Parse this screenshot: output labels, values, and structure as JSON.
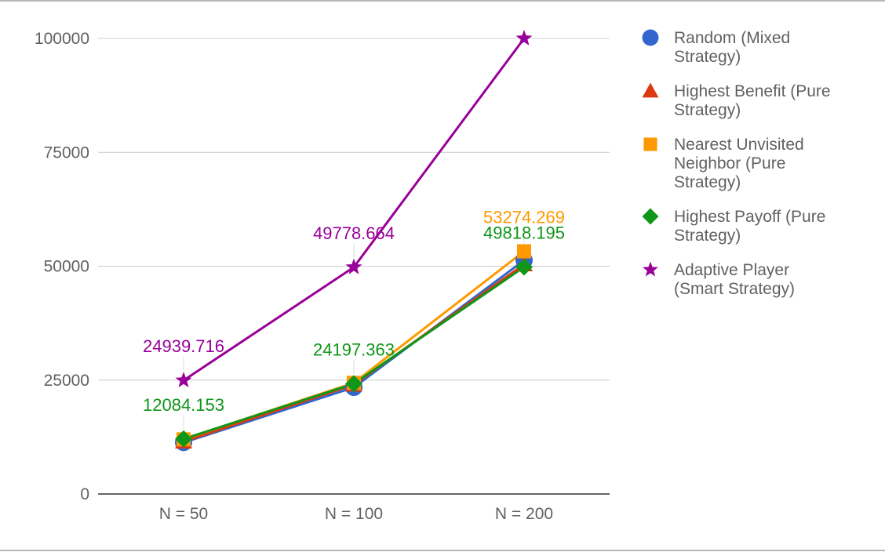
{
  "chart_data": {
    "type": "line",
    "categories": [
      "N = 50",
      "N = 100",
      "N = 200"
    ],
    "ylim": [
      0,
      100000
    ],
    "yticks": [
      "0",
      "25000",
      "50000",
      "75000",
      "100000"
    ],
    "ytick_values": [
      0,
      25000,
      50000,
      75000,
      100000
    ],
    "grid": true,
    "legend_position": "right",
    "series": [
      {
        "name": "Random (Mixed Strategy)",
        "legend_lines": [
          "Random (Mixed",
          "Strategy)"
        ],
        "color": "#3366cc",
        "marker": "circle",
        "values": [
          11300,
          23400,
          51300
        ],
        "labels": [
          "",
          "",
          ""
        ]
      },
      {
        "name": "Highest Benefit (Pure Strategy)",
        "legend_lines": [
          "Highest Benefit (Pure",
          "Strategy)"
        ],
        "color": "#dc3912",
        "marker": "triangle",
        "values": [
          11500,
          24000,
          50400
        ],
        "labels": [
          "",
          "",
          ""
        ]
      },
      {
        "name": "Nearest Unvisited Neighbor (Pure Strategy)",
        "legend_lines": [
          "Nearest Unvisited",
          "Neighbor (Pure",
          "Strategy)"
        ],
        "color": "#ff9900",
        "marker": "square",
        "values": [
          12000,
          24400,
          53274.269
        ],
        "labels": [
          "",
          "",
          "53274.269"
        ]
      },
      {
        "name": "Highest Payoff (Pure Strategy)",
        "legend_lines": [
          "Highest Payoff (Pure",
          "Strategy)"
        ],
        "color": "#109618",
        "marker": "diamond",
        "values": [
          12084.153,
          24197.363,
          49818.195
        ],
        "labels": [
          "12084.153",
          "24197.363",
          "49818.195"
        ]
      },
      {
        "name": "Adaptive Player (Smart Strategy)",
        "legend_lines": [
          "Adaptive Player",
          "(Smart Strategy)"
        ],
        "color": "#990099",
        "marker": "star",
        "values": [
          24939.716,
          49778.664,
          100000
        ],
        "labels": [
          "24939.716",
          "49778.664",
          ""
        ]
      }
    ]
  }
}
